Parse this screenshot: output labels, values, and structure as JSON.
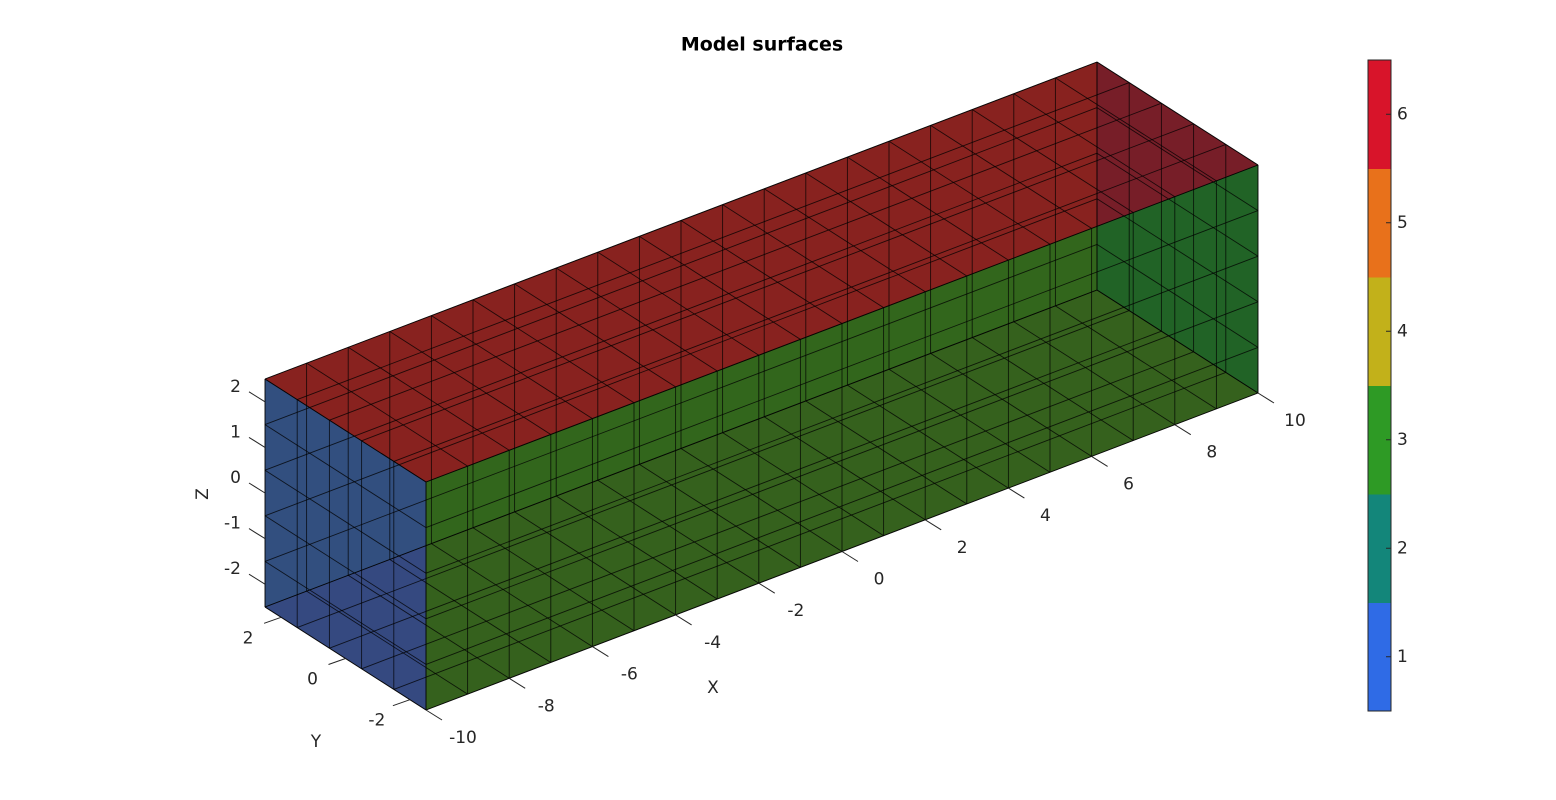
{
  "chart_data": {
    "type": "box3d",
    "title": "Model surfaces",
    "xlabel": "X",
    "ylabel": "Y",
    "zlabel": "Z",
    "xlim": [
      -10,
      10
    ],
    "ylim": [
      -2.5,
      2.5
    ],
    "zlim": [
      -2.5,
      2.5
    ],
    "xticks": [
      -10,
      -8,
      -6,
      -4,
      -2,
      0,
      2,
      4,
      6,
      8,
      10
    ],
    "yticks": [
      -2,
      0,
      2
    ],
    "zticks": [
      -2,
      -1,
      0,
      1,
      2
    ],
    "face_values": [
      1,
      2,
      3,
      4,
      5,
      6
    ],
    "colorbar": {
      "lim": [
        0.5,
        6.5
      ],
      "ticks": [
        1,
        2,
        3,
        4,
        5,
        6
      ],
      "colors": [
        "#2f6be6",
        "#13867a",
        "#2e9a25",
        "#c2b11a",
        "#e8711b",
        "#d8142a"
      ]
    }
  }
}
